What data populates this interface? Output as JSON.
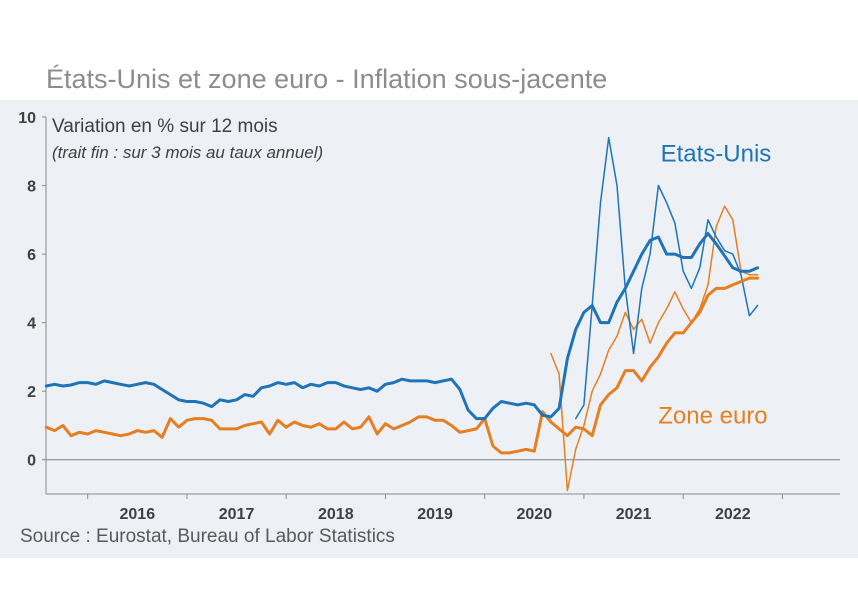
{
  "title": "États-Unis et zone euro - Inflation sous-jacente",
  "source": "Source : Eurostat, Bureau of Labor Statistics",
  "chart_data": {
    "type": "line",
    "annotation": "Variation en % sur 12 mois",
    "annotation_sub": "(trait fin : sur 3 mois au taux annuel)",
    "ylim": [
      -1,
      10
    ],
    "yticks": [
      0,
      2,
      4,
      6,
      8,
      10
    ],
    "xlim": [
      2015.58,
      2023.58
    ],
    "xticks": [
      {
        "label": "2016",
        "x": 2016.5
      },
      {
        "label": "2017",
        "x": 2017.5
      },
      {
        "label": "2018",
        "x": 2018.5
      },
      {
        "label": "2019",
        "x": 2019.5
      },
      {
        "label": "2020",
        "x": 2020.5
      },
      {
        "label": "2021",
        "x": 2021.5
      },
      {
        "label": "2022",
        "x": 2022.5
      }
    ],
    "colors": {
      "us": "#1f73b7",
      "ez": "#e67e22"
    },
    "series": [
      {
        "name": "Etats-Unis",
        "key": "us",
        "width": 3,
        "x": [
          2015.583,
          2015.667,
          2015.75,
          2015.833,
          2015.917,
          2016.0,
          2016.083,
          2016.167,
          2016.25,
          2016.333,
          2016.417,
          2016.5,
          2016.583,
          2016.667,
          2016.75,
          2016.833,
          2016.917,
          2017.0,
          2017.083,
          2017.167,
          2017.25,
          2017.333,
          2017.417,
          2017.5,
          2017.583,
          2017.667,
          2017.75,
          2017.833,
          2017.917,
          2018.0,
          2018.083,
          2018.167,
          2018.25,
          2018.333,
          2018.417,
          2018.5,
          2018.583,
          2018.667,
          2018.75,
          2018.833,
          2018.917,
          2019.0,
          2019.083,
          2019.167,
          2019.25,
          2019.333,
          2019.417,
          2019.5,
          2019.583,
          2019.667,
          2019.75,
          2019.833,
          2019.917,
          2020.0,
          2020.083,
          2020.167,
          2020.25,
          2020.333,
          2020.417,
          2020.5,
          2020.583,
          2020.667,
          2020.75,
          2020.833,
          2020.917,
          2021.0,
          2021.083,
          2021.167,
          2021.25,
          2021.333,
          2021.417,
          2021.5,
          2021.583,
          2021.667,
          2021.75,
          2021.833,
          2021.917,
          2022.0,
          2022.083,
          2022.167,
          2022.25,
          2022.333,
          2022.417,
          2022.5,
          2022.583,
          2022.667,
          2022.75
        ],
        "y": [
          2.15,
          2.2,
          2.15,
          2.18,
          2.25,
          2.25,
          2.2,
          2.3,
          2.25,
          2.2,
          2.15,
          2.2,
          2.25,
          2.2,
          2.05,
          1.9,
          1.75,
          1.7,
          1.7,
          1.65,
          1.55,
          1.75,
          1.7,
          1.75,
          1.9,
          1.85,
          2.1,
          2.15,
          2.25,
          2.2,
          2.25,
          2.1,
          2.2,
          2.15,
          2.25,
          2.25,
          2.15,
          2.1,
          2.05,
          2.1,
          2.0,
          2.2,
          2.25,
          2.35,
          2.3,
          2.3,
          2.3,
          2.25,
          2.3,
          2.35,
          2.05,
          1.45,
          1.2,
          1.2,
          1.5,
          1.7,
          1.65,
          1.6,
          1.65,
          1.6,
          1.3,
          1.25,
          1.5,
          2.95,
          3.8,
          4.3,
          4.5,
          4.0,
          4.0,
          4.6,
          5.0,
          5.5,
          6.0,
          6.4,
          6.5,
          6.0,
          6.0,
          5.9,
          5.9,
          6.3,
          6.6,
          6.3,
          5.95,
          5.6,
          5.5,
          5.5,
          5.6
        ]
      },
      {
        "name": "Etats-Unis (3 mois)",
        "key": "us",
        "width": 1.5,
        "x": [
          2020.917,
          2021.0,
          2021.083,
          2021.167,
          2021.25,
          2021.333,
          2021.417,
          2021.5,
          2021.583,
          2021.667,
          2021.75,
          2021.833,
          2021.917,
          2022.0,
          2022.083,
          2022.167,
          2022.25,
          2022.333,
          2022.417,
          2022.5,
          2022.583,
          2022.667,
          2022.75
        ],
        "y": [
          1.2,
          1.6,
          4.5,
          7.5,
          9.4,
          8.0,
          5.0,
          3.1,
          5.0,
          6.0,
          8.0,
          7.5,
          6.9,
          5.5,
          5.0,
          5.6,
          7.0,
          6.5,
          6.1,
          6.0,
          5.4,
          4.2,
          4.5
        ]
      },
      {
        "name": "Zone euro",
        "key": "ez",
        "width": 3,
        "x": [
          2015.583,
          2015.667,
          2015.75,
          2015.833,
          2015.917,
          2016.0,
          2016.083,
          2016.167,
          2016.25,
          2016.333,
          2016.417,
          2016.5,
          2016.583,
          2016.667,
          2016.75,
          2016.833,
          2016.917,
          2017.0,
          2017.083,
          2017.167,
          2017.25,
          2017.333,
          2017.417,
          2017.5,
          2017.583,
          2017.667,
          2017.75,
          2017.833,
          2017.917,
          2018.0,
          2018.083,
          2018.167,
          2018.25,
          2018.333,
          2018.417,
          2018.5,
          2018.583,
          2018.667,
          2018.75,
          2018.833,
          2018.917,
          2019.0,
          2019.083,
          2019.167,
          2019.25,
          2019.333,
          2019.417,
          2019.5,
          2019.583,
          2019.667,
          2019.75,
          2019.833,
          2019.917,
          2020.0,
          2020.083,
          2020.167,
          2020.25,
          2020.333,
          2020.417,
          2020.5,
          2020.583,
          2020.667,
          2020.75,
          2020.833,
          2020.917,
          2021.0,
          2021.083,
          2021.167,
          2021.25,
          2021.333,
          2021.417,
          2021.5,
          2021.583,
          2021.667,
          2021.75,
          2021.833,
          2021.917,
          2022.0,
          2022.083,
          2022.167,
          2022.25,
          2022.333,
          2022.417,
          2022.5,
          2022.583,
          2022.667,
          2022.75
        ],
        "y": [
          0.95,
          0.85,
          1.0,
          0.7,
          0.8,
          0.75,
          0.85,
          0.8,
          0.75,
          0.7,
          0.75,
          0.85,
          0.8,
          0.85,
          0.65,
          1.2,
          0.95,
          1.15,
          1.2,
          1.2,
          1.15,
          0.9,
          0.9,
          0.9,
          1.0,
          1.05,
          1.1,
          0.75,
          1.15,
          0.95,
          1.1,
          1.0,
          0.95,
          1.05,
          0.9,
          0.9,
          1.1,
          0.9,
          0.95,
          1.25,
          0.75,
          1.05,
          0.9,
          1.0,
          1.1,
          1.25,
          1.25,
          1.15,
          1.15,
          1.0,
          0.8,
          0.85,
          0.9,
          1.2,
          0.4,
          0.2,
          0.2,
          0.25,
          0.3,
          0.25,
          1.4,
          1.1,
          0.9,
          0.7,
          0.95,
          0.9,
          0.7,
          1.6,
          1.9,
          2.1,
          2.6,
          2.6,
          2.3,
          2.7,
          3.0,
          3.4,
          3.7,
          3.7,
          4.0,
          4.3,
          4.8,
          5.0,
          5.0,
          5.1,
          5.2,
          5.3,
          5.3
        ]
      },
      {
        "name": "Zone euro (3 mois)",
        "key": "ez",
        "width": 1.5,
        "x": [
          2020.667,
          2020.75,
          2020.833,
          2020.917,
          2021.0,
          2021.083,
          2021.167,
          2021.25,
          2021.333,
          2021.417,
          2021.5,
          2021.583,
          2021.667,
          2021.75,
          2021.833,
          2021.917,
          2022.0,
          2022.083,
          2022.167,
          2022.25,
          2022.333,
          2022.417,
          2022.5,
          2022.583,
          2022.667,
          2022.75
        ],
        "y": [
          3.1,
          2.5,
          -0.9,
          0.3,
          1.0,
          2.0,
          2.5,
          3.2,
          3.6,
          4.3,
          3.8,
          4.1,
          3.4,
          4.0,
          4.4,
          4.9,
          4.4,
          4.0,
          4.4,
          5.1,
          6.8,
          7.4,
          7.0,
          5.5,
          5.4,
          5.4
        ]
      }
    ],
    "labels": [
      {
        "text": "Etats-Unis",
        "key": "us",
        "x": 2022.33,
        "y": 8.7
      },
      {
        "text": "Zone euro",
        "key": "ez",
        "x": 2022.3,
        "y": 1.05
      }
    ]
  }
}
